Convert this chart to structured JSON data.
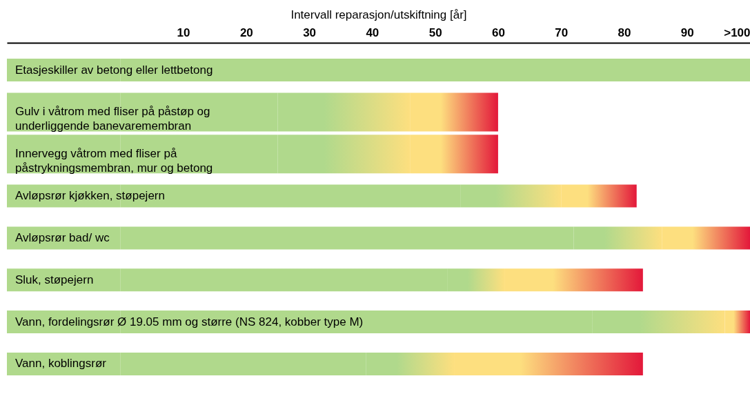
{
  "chart_data": {
    "type": "bar",
    "orientation": "horizontal",
    "stacked": true,
    "xlabel": "Intervall reparasjon/utskiftning [år]",
    "categories": [
      "Etasjeskiller av betong eller lettbetong",
      "Gulv i våtrom med fliser på påstøp og\nunderliggende banevaremembran",
      "Innervegg våtrom med fliser på\npåstrykningsmembran, mur og betong",
      "Avløpsrør kjøkken, støpejern",
      "Avløpsrør bad/ wc",
      "Sluk, støpejern",
      "Vann, fordelingsrør Ø 19.05 mm og større (NS 824, kobber type M)",
      "Vann, koblingsrør"
    ],
    "series": [
      {
        "color": "#b0d98c",
        "values": [
          -18,
          -18,
          -18,
          -18,
          -18,
          -18,
          -18,
          -18
        ]
      },
      {
        "color": "#b0d98c",
        "values": [
          100,
          25,
          25,
          54,
          72,
          52,
          75,
          39
        ]
      },
      {
        "color": "#fddf7f",
        "values": [
          null,
          21,
          21,
          16,
          14,
          9,
          21,
          14
        ]
      },
      {
        "color": "#e3183a",
        "values": [
          null,
          14,
          14,
          12,
          14,
          22,
          4,
          30
        ]
      }
    ],
    "xlim": [
      -18,
      100
    ],
    "xticks": [
      10,
      20,
      30,
      40,
      50,
      60,
      70,
      80,
      90,
      {
        "value": 100,
        "label": ">100"
      }
    ],
    "tick_labels": "x",
    "grid": false
  }
}
